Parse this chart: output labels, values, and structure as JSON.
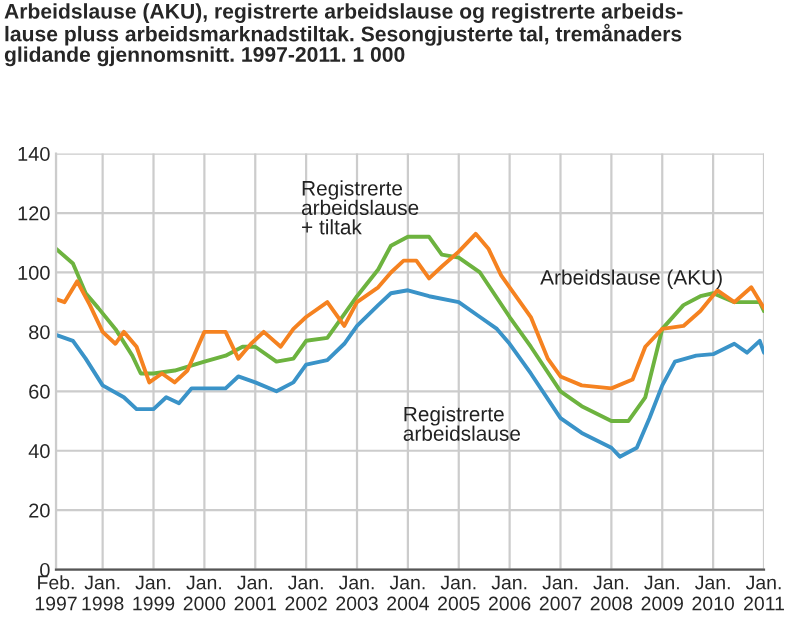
{
  "chart_data": {
    "type": "line",
    "title": "Arbeidslause (AKU), registrerte arbeidslause og registrerte arbeids-\nlause pluss arbeidsmarknadstiltak. Sesongjusterte tal, tremånaders\nglidande gjennomsnitt. 1997-2011. 1 000",
    "series": [
      {
        "name": "Registrerte\narbeidslause\n+ tiltak",
        "color": "#6db33f",
        "x": [
          "1997-02",
          "1997-06",
          "1997-09",
          "1997-12",
          "1998-04",
          "1998-08",
          "1998-10",
          "1999-01",
          "1999-06",
          "2000-01",
          "2000-06",
          "2000-10",
          "2001-01",
          "2001-06",
          "2001-10",
          "2002-01",
          "2002-06",
          "2002-10",
          "2003-01",
          "2003-06",
          "2003-09",
          "2004-01",
          "2004-06",
          "2004-09",
          "2005-01",
          "2005-06",
          "2006-01",
          "2006-06",
          "2007-01",
          "2007-06",
          "2008-01",
          "2008-05",
          "2008-09",
          "2009-01",
          "2009-06",
          "2009-10",
          "2010-01",
          "2010-06",
          "2010-12",
          "2011-01"
        ],
        "values": [
          108,
          103,
          93,
          88,
          81,
          72,
          66,
          66,
          67,
          70,
          72,
          75,
          75,
          70,
          71,
          77,
          78,
          86,
          92,
          101,
          109,
          112,
          112,
          106,
          105,
          100,
          85,
          75,
          60,
          55,
          50,
          50,
          58,
          81,
          89,
          92,
          93,
          90,
          90,
          87
        ]
      },
      {
        "name": "Arbeidslause (AKU)",
        "color": "#f58220",
        "x": [
          "1997-02",
          "1997-04",
          "1997-07",
          "1997-10",
          "1998-01",
          "1998-04",
          "1998-06",
          "1998-09",
          "1998-12",
          "1999-03",
          "1999-06",
          "1999-09",
          "2000-01",
          "2000-06",
          "2000-09",
          "2000-12",
          "2001-03",
          "2001-07",
          "2001-10",
          "2002-01",
          "2002-06",
          "2002-10",
          "2003-01",
          "2003-06",
          "2003-09",
          "2003-12",
          "2004-03",
          "2004-06",
          "2004-09",
          "2005-01",
          "2005-05",
          "2005-08",
          "2005-11",
          "2006-01",
          "2006-06",
          "2006-10",
          "2007-01",
          "2007-06",
          "2008-01",
          "2008-06",
          "2008-09",
          "2009-01",
          "2009-06",
          "2009-10",
          "2010-02",
          "2010-06",
          "2010-10",
          "2011-01"
        ],
        "values": [
          91,
          90,
          97,
          89,
          80,
          76,
          80,
          75,
          63,
          66,
          63,
          67,
          80,
          80,
          71,
          76,
          80,
          75,
          81,
          85,
          90,
          82,
          90,
          95,
          100,
          104,
          104,
          98,
          102,
          107,
          113,
          108,
          99,
          95,
          85,
          71,
          65,
          62,
          61,
          64,
          75,
          81,
          82,
          87,
          94,
          90,
          95,
          88
        ]
      },
      {
        "name": "Registrerte\narbeidslause",
        "color": "#3a93c8",
        "x": [
          "1997-02",
          "1997-06",
          "1997-09",
          "1998-01",
          "1998-06",
          "1998-09",
          "1999-01",
          "1999-04",
          "1999-07",
          "1999-10",
          "2000-01",
          "2000-06",
          "2000-09",
          "2001-01",
          "2001-06",
          "2001-10",
          "2002-01",
          "2002-06",
          "2002-10",
          "2003-01",
          "2003-06",
          "2003-09",
          "2004-01",
          "2004-06",
          "2005-01",
          "2005-06",
          "2005-10",
          "2006-01",
          "2006-06",
          "2007-01",
          "2007-06",
          "2008-01",
          "2008-03",
          "2008-07",
          "2008-10",
          "2009-01",
          "2009-04",
          "2009-09",
          "2010-01",
          "2010-06",
          "2010-09",
          "2010-12",
          "2011-01"
        ],
        "values": [
          79,
          77,
          71,
          62,
          58,
          54,
          54,
          58,
          56,
          61,
          61,
          61,
          65,
          63,
          60,
          63,
          69,
          70.5,
          76,
          82,
          89,
          93,
          94,
          92,
          90,
          85,
          81,
          76,
          66,
          51,
          46,
          41,
          38,
          41,
          51,
          62,
          70,
          72,
          72.5,
          76,
          73,
          77,
          73
        ]
      }
    ],
    "xlim": [
      "1997-02",
      "2011-01"
    ],
    "xticks": [
      {
        "value": "1997-02",
        "label": "Feb.\n1997"
      },
      {
        "value": "1998-01",
        "label": "Jan.\n1998"
      },
      {
        "value": "1999-01",
        "label": "Jan.\n1999"
      },
      {
        "value": "2000-01",
        "label": "Jan.\n2000"
      },
      {
        "value": "2001-01",
        "label": "Jan.\n2001"
      },
      {
        "value": "2002-01",
        "label": "Jan.\n2002"
      },
      {
        "value": "2003-01",
        "label": "Jan.\n2003"
      },
      {
        "value": "2004-01",
        "label": "Jan.\n2004"
      },
      {
        "value": "2005-01",
        "label": "Jan.\n2005"
      },
      {
        "value": "2006-01",
        "label": "Jan.\n2006"
      },
      {
        "value": "2007-01",
        "label": "Jan.\n2007"
      },
      {
        "value": "2008-01",
        "label": "Jan.\n2008"
      },
      {
        "value": "2009-01",
        "label": "Jan.\n2009"
      },
      {
        "value": "2010-01",
        "label": "Jan.\n2010"
      },
      {
        "value": "2011-01",
        "label": "Jan.\n2011"
      }
    ],
    "ylim": [
      0,
      140
    ],
    "yticks": [
      0,
      20,
      40,
      60,
      80,
      100,
      120,
      140
    ],
    "grid": true,
    "legend": false
  }
}
